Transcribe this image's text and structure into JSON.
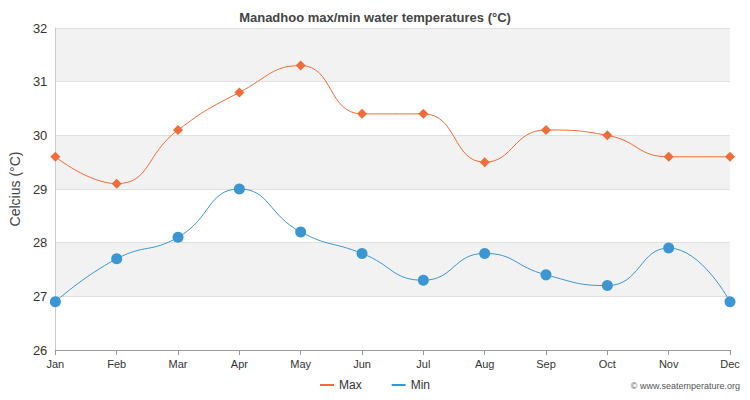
{
  "chart_data": {
    "type": "line",
    "title": "Manadhoo max/min water temperatures (°C)",
    "y_label": "Celcius (°C)",
    "annotations": [
      "© www.seatemperature.org"
    ],
    "categories": [
      "Jan",
      "Feb",
      "Mar",
      "Apr",
      "May",
      "Jun",
      "Jul",
      "Aug",
      "Sep",
      "Oct",
      "Nov",
      "Dec"
    ],
    "series": [
      {
        "name": "Max",
        "color": "#f26b38",
        "marker": "diamond",
        "values": [
          29.6,
          29.1,
          30.1,
          30.8,
          31.3,
          30.4,
          30.4,
          29.5,
          30.1,
          30.0,
          29.6,
          29.6
        ]
      },
      {
        "name": "Min",
        "color": "#3b96d1",
        "marker": "circle",
        "values": [
          26.9,
          27.7,
          28.1,
          29.0,
          28.2,
          27.8,
          27.3,
          27.8,
          27.4,
          27.2,
          27.9,
          26.9
        ]
      }
    ],
    "ylim": [
      26,
      32
    ],
    "yticks": [
      26,
      27,
      28,
      29,
      30,
      31,
      32
    ],
    "grid": true,
    "legend": "bottom"
  }
}
